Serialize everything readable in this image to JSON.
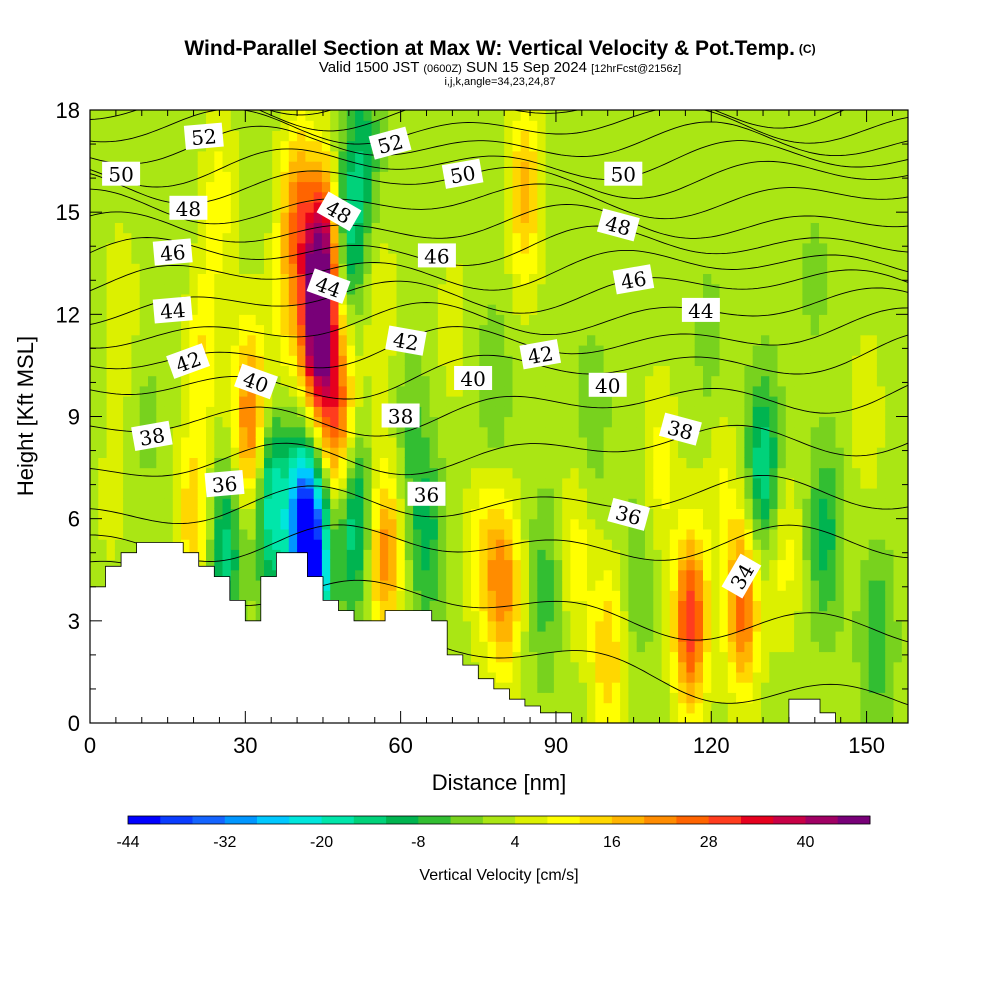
{
  "title": {
    "main": "Wind-Parallel Section at Max W: Vertical Velocity & Pot.Temp.",
    "main_unit": "(C)",
    "valid_prefix": "Valid 1500 JST",
    "valid_utc": "(0600Z)",
    "valid_date": "SUN 15 Sep 2024",
    "forecast": "[12hrFcst@2156z]",
    "indices": "i,j,k,angle=34,23,24,87"
  },
  "chart_data": {
    "type": "heatmap",
    "xlabel": "Distance [nm]",
    "ylabel": "Height [Kft MSL]",
    "xlim": [
      0,
      158
    ],
    "ylim": [
      0,
      18
    ],
    "x_ticks": [
      "0",
      "30",
      "60",
      "90",
      "120",
      "150"
    ],
    "y_ticks": [
      "0",
      "3",
      "6",
      "9",
      "12",
      "15",
      "18"
    ],
    "x_tick_values": [
      0,
      30,
      60,
      90,
      120,
      150
    ],
    "y_tick_values": [
      0,
      3,
      6,
      9,
      12,
      15,
      18
    ],
    "colorbar": {
      "label": "Vertical Velocity [cm/s]",
      "tick_labels": [
        "-44",
        "-32",
        "-20",
        "-8",
        "4",
        "16",
        "28",
        "40"
      ],
      "tick_values": [
        -44,
        -32,
        -20,
        -8,
        4,
        16,
        28,
        40
      ],
      "min": -44,
      "max": 44,
      "step": 4,
      "colors": [
        "#0000ff",
        "#0a3cff",
        "#1464ff",
        "#0096ff",
        "#00c8ff",
        "#00e6dc",
        "#00e6aa",
        "#00d27a",
        "#00b450",
        "#32be32",
        "#78d21e",
        "#aae614",
        "#dcf000",
        "#ffff00",
        "#ffd700",
        "#ffb400",
        "#ff8c00",
        "#ff6400",
        "#ff3c1e",
        "#e6001e",
        "#c80046",
        "#a00064",
        "#780078"
      ]
    },
    "wind_cells": [
      {
        "x": 4,
        "y": 6.5,
        "w": 3
      },
      {
        "x": 6,
        "y": 12.0,
        "w": 6
      },
      {
        "x": 11,
        "y": 9.0,
        "w": -3
      },
      {
        "x": 20,
        "y": 6.0,
        "w": 14
      },
      {
        "x": 22,
        "y": 11.0,
        "w": 10
      },
      {
        "x": 25,
        "y": 15.5,
        "w": 8
      },
      {
        "x": 26,
        "y": 5.0,
        "w": -16
      },
      {
        "x": 31,
        "y": 9.0,
        "w": 24
      },
      {
        "x": 35,
        "y": 6.5,
        "w": -22
      },
      {
        "x": 38,
        "y": 12.0,
        "w": 8
      },
      {
        "x": 40,
        "y": 15.0,
        "w": 20
      },
      {
        "x": 41,
        "y": 6.0,
        "w": -30
      },
      {
        "x": 43,
        "y": 4.5,
        "w": -40
      },
      {
        "x": 44,
        "y": 11.5,
        "w": 44
      },
      {
        "x": 45,
        "y": 14.0,
        "w": 30
      },
      {
        "x": 48,
        "y": 9.0,
        "w": 24
      },
      {
        "x": 50,
        "y": 14.5,
        "w": -16
      },
      {
        "x": 51,
        "y": 6.0,
        "w": -18
      },
      {
        "x": 53,
        "y": 17.0,
        "w": -10
      },
      {
        "x": 56,
        "y": 12.0,
        "w": 6
      },
      {
        "x": 57,
        "y": 5.0,
        "w": 20
      },
      {
        "x": 62,
        "y": 8.5,
        "w": -6
      },
      {
        "x": 65,
        "y": 5.5,
        "w": -12
      },
      {
        "x": 70,
        "y": 11.5,
        "w": 4
      },
      {
        "x": 76,
        "y": 5.0,
        "w": 10
      },
      {
        "x": 78,
        "y": 9.5,
        "w": -6
      },
      {
        "x": 80,
        "y": 4.0,
        "w": 20
      },
      {
        "x": 84,
        "y": 15.5,
        "w": 16
      },
      {
        "x": 88,
        "y": 4.0,
        "w": -8
      },
      {
        "x": 94,
        "y": 5.0,
        "w": 8
      },
      {
        "x": 97,
        "y": 9.0,
        "w": -5
      },
      {
        "x": 100,
        "y": 2.0,
        "w": 14
      },
      {
        "x": 106,
        "y": 4.5,
        "w": -6
      },
      {
        "x": 110,
        "y": 7.5,
        "w": 8
      },
      {
        "x": 116,
        "y": 3.0,
        "w": 30
      },
      {
        "x": 120,
        "y": 11.0,
        "w": -4
      },
      {
        "x": 122,
        "y": 7.0,
        "w": 6
      },
      {
        "x": 126,
        "y": 3.5,
        "w": 24
      },
      {
        "x": 130,
        "y": 7.5,
        "w": -18
      },
      {
        "x": 134,
        "y": 5.0,
        "w": 8
      },
      {
        "x": 140,
        "y": 13.0,
        "w": -3
      },
      {
        "x": 142,
        "y": 5.5,
        "w": -12
      },
      {
        "x": 152,
        "y": 2.5,
        "w": -10
      },
      {
        "x": 150,
        "y": 9.0,
        "w": 5
      }
    ],
    "terrain": {
      "x": [
        0,
        3,
        6,
        9,
        12,
        15,
        18,
        21,
        24,
        27,
        30,
        33,
        36,
        39,
        42,
        45,
        48,
        51,
        54,
        57,
        60,
        63,
        66,
        69,
        72,
        75,
        78,
        81,
        84,
        87,
        90,
        93,
        96,
        99,
        102,
        105,
        108,
        111,
        114,
        117,
        120,
        123,
        126,
        129,
        132,
        135,
        138,
        141,
        144,
        147,
        150,
        153,
        156,
        158
      ],
      "height": [
        4.0,
        4.6,
        5.0,
        5.3,
        5.3,
        5.3,
        5.0,
        4.6,
        4.3,
        3.6,
        3.0,
        4.3,
        5.0,
        5.0,
        4.3,
        3.6,
        3.3,
        3.0,
        3.0,
        3.3,
        3.3,
        3.3,
        3.0,
        2.0,
        1.7,
        1.3,
        1.0,
        0.7,
        0.5,
        0.3,
        0.3,
        0.0,
        0.0,
        0.0,
        0.0,
        0.0,
        0.0,
        0.0,
        0.0,
        0.0,
        0.0,
        0.0,
        0.0,
        0.0,
        0.0,
        0.7,
        0.7,
        0.3,
        0.0,
        0.0,
        0.0,
        0.0,
        0.0,
        0.0
      ]
    },
    "theta_contours": {
      "levels": [
        34,
        35,
        36,
        37,
        38,
        39,
        40,
        41,
        42,
        43,
        44,
        45,
        46,
        47,
        48,
        49,
        50,
        51,
        52,
        53
      ],
      "base_height_at_x0": [
        3.5,
        4.4,
        5.3,
        6.2,
        7.4,
        8.6,
        9.7,
        10.6,
        11.4,
        12.2,
        13.0,
        13.7,
        14.4,
        15.1,
        15.8,
        16.3,
        16.9,
        17.4,
        17.9,
        18.4
      ],
      "base_height_at_xmax": [
        0.5,
        2.5,
        5.2,
        6.8,
        8.5,
        9.8,
        10.9,
        11.6,
        12.3,
        13.0,
        13.6,
        14.2,
        14.8,
        15.5,
        16.1,
        16.6,
        17.1,
        17.6,
        18.1,
        18.6
      ],
      "labels": [
        {
          "text": "52",
          "x": 22,
          "y": 17.2,
          "rotate": -5
        },
        {
          "text": "52",
          "x": 58,
          "y": 17.0,
          "rotate": -15
        },
        {
          "text": "50",
          "x": 6,
          "y": 16.1,
          "rotate": 0
        },
        {
          "text": "50",
          "x": 72,
          "y": 16.1,
          "rotate": -10
        },
        {
          "text": "50",
          "x": 103,
          "y": 16.1,
          "rotate": 0
        },
        {
          "text": "48",
          "x": 19,
          "y": 15.1,
          "rotate": 0
        },
        {
          "text": "48",
          "x": 48,
          "y": 15.0,
          "rotate": 30
        },
        {
          "text": "48",
          "x": 102,
          "y": 14.6,
          "rotate": 15
        },
        {
          "text": "46",
          "x": 16,
          "y": 13.8,
          "rotate": -5
        },
        {
          "text": "46",
          "x": 67,
          "y": 13.7,
          "rotate": 0
        },
        {
          "text": "46",
          "x": 105,
          "y": 13.0,
          "rotate": -10
        },
        {
          "text": "44",
          "x": 16,
          "y": 12.1,
          "rotate": -5
        },
        {
          "text": "44",
          "x": 46,
          "y": 12.8,
          "rotate": 20
        },
        {
          "text": "44",
          "x": 118,
          "y": 12.1,
          "rotate": 0
        },
        {
          "text": "42",
          "x": 19,
          "y": 10.6,
          "rotate": -20
        },
        {
          "text": "42",
          "x": 61,
          "y": 11.2,
          "rotate": 10
        },
        {
          "text": "42",
          "x": 87,
          "y": 10.8,
          "rotate": -10
        },
        {
          "text": "40",
          "x": 32,
          "y": 10.0,
          "rotate": 20
        },
        {
          "text": "40",
          "x": 74,
          "y": 10.1,
          "rotate": 0
        },
        {
          "text": "40",
          "x": 100,
          "y": 9.9,
          "rotate": 0
        },
        {
          "text": "38",
          "x": 12,
          "y": 8.4,
          "rotate": -10
        },
        {
          "text": "38",
          "x": 60,
          "y": 9.0,
          "rotate": 0
        },
        {
          "text": "38",
          "x": 114,
          "y": 8.6,
          "rotate": 15
        },
        {
          "text": "36",
          "x": 26,
          "y": 7.0,
          "rotate": -5
        },
        {
          "text": "36",
          "x": 65,
          "y": 6.7,
          "rotate": 0
        },
        {
          "text": "36",
          "x": 104,
          "y": 6.1,
          "rotate": 15
        },
        {
          "text": "34",
          "x": 126,
          "y": 4.3,
          "rotate": -60
        }
      ]
    }
  }
}
